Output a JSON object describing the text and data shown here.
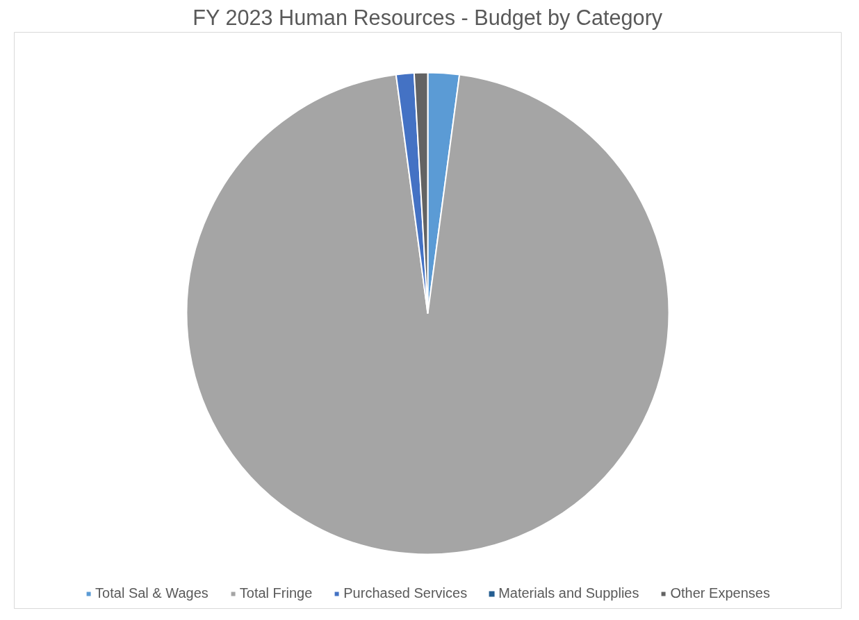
{
  "chart_data": {
    "type": "pie",
    "title": "FY 2023 Human Resources - Budget by Category",
    "categories": [
      "Total Sal & Wages",
      "Total Fringe",
      "Purchased Services",
      "Materials and Supplies",
      "Other Expenses"
    ],
    "values": [
      2.1,
      95.8,
      1.2,
      0,
      0.9
    ],
    "colors": [
      "#5b9bd5",
      "#a5a5a5",
      "#4472c4",
      "#255e91",
      "#636363"
    ],
    "legend": "bottom"
  }
}
